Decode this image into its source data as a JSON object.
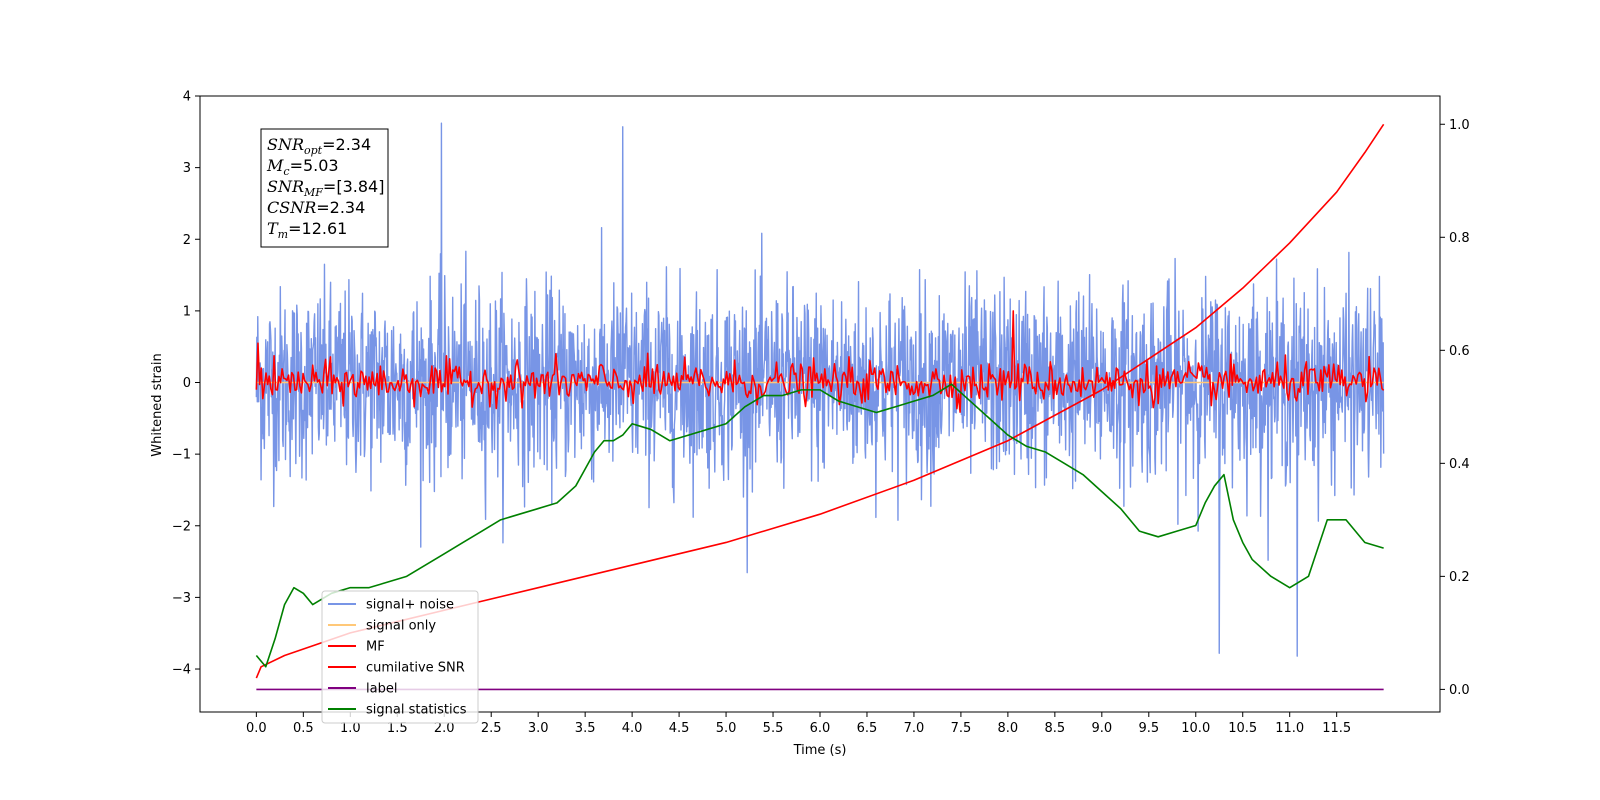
{
  "chart_data": {
    "type": "line",
    "xlabel": "Time (s)",
    "ylabel": "Whitened strain",
    "xlim": [
      -0.6,
      12.6
    ],
    "ylim": [
      -4.6,
      4.0
    ],
    "y2lim": [
      -0.04,
      1.05
    ],
    "grid": false,
    "legend_position": "lower-left",
    "x_ticks": [
      "0.0",
      "0.5",
      "1.0",
      "1.5",
      "2.0",
      "2.5",
      "3.0",
      "3.5",
      "4.0",
      "4.5",
      "5.0",
      "5.5",
      "6.0",
      "6.5",
      "7.0",
      "7.5",
      "8.0",
      "8.5",
      "9.0",
      "9.5",
      "10.0",
      "10.5",
      "11.0",
      "11.5"
    ],
    "y_ticks": [
      "4",
      "3",
      "2",
      "1",
      "0",
      "−1",
      "−2",
      "−3",
      "−4"
    ],
    "y2_ticks": [
      "1.0",
      "0.8",
      "0.6",
      "0.4",
      "0.2",
      "0.0"
    ],
    "info_box": [
      {
        "sym": "SNR",
        "sub": "opt",
        "value": "=2.34"
      },
      {
        "sym": "M",
        "sub": "c",
        "value": "=5.03"
      },
      {
        "sym": "SNR",
        "sub": "MF",
        "value": "=[3.84]"
      },
      {
        "sym": "CSNR",
        "sub": "",
        "value": "=2.34"
      },
      {
        "sym": "T",
        "sub": "m",
        "value": "=12.61"
      }
    ],
    "series": [
      {
        "name": "signal+ noise",
        "color": "#7895e6",
        "axis": "left",
        "kind": "noise",
        "x_range": [
          0,
          12.0
        ],
        "center": 0.0,
        "amplitude_approx": 1.2,
        "max": 3.62,
        "min": -3.82
      },
      {
        "name": "signal only",
        "color": "#ffc878",
        "axis": "left",
        "kind": "flat",
        "x_range": [
          0,
          12.0
        ],
        "value": 0.0
      },
      {
        "name": "MF",
        "color": "#ff0000",
        "axis": "left",
        "kind": "noise",
        "x_range": [
          0,
          12.0
        ],
        "center": 0.0,
        "amplitude_approx": 0.25,
        "max": 1.0,
        "min": -0.5
      },
      {
        "name": "cumilative SNR",
        "color": "#ff0000",
        "axis": "right",
        "x": [
          0,
          0.05,
          0.3,
          1.0,
          2.0,
          3.0,
          4.0,
          5.0,
          6.0,
          7.0,
          8.0,
          9.0,
          10.0,
          10.5,
          11.0,
          11.5,
          11.8,
          12.0
        ],
        "y": [
          0.02,
          0.04,
          0.06,
          0.1,
          0.14,
          0.18,
          0.22,
          0.26,
          0.31,
          0.37,
          0.44,
          0.53,
          0.64,
          0.71,
          0.79,
          0.88,
          0.95,
          1.0
        ]
      },
      {
        "name": "label",
        "color": "#800080",
        "axis": "right",
        "x": [
          0,
          12.0
        ],
        "y": [
          0.0,
          0.0
        ]
      },
      {
        "name": "signal statistics",
        "color": "#008000",
        "axis": "right",
        "x": [
          0,
          0.1,
          0.2,
          0.3,
          0.4,
          0.5,
          0.6,
          0.7,
          0.8,
          1.0,
          1.2,
          1.4,
          1.6,
          1.8,
          2.0,
          2.2,
          2.4,
          2.6,
          2.8,
          3.0,
          3.2,
          3.4,
          3.5,
          3.6,
          3.7,
          3.8,
          3.9,
          4.0,
          4.2,
          4.4,
          4.6,
          4.8,
          5.0,
          5.2,
          5.4,
          5.6,
          5.8,
          6.0,
          6.2,
          6.4,
          6.6,
          6.8,
          7.0,
          7.2,
          7.4,
          7.6,
          7.8,
          8.0,
          8.2,
          8.4,
          8.6,
          8.8,
          9.0,
          9.2,
          9.4,
          9.6,
          9.8,
          10.0,
          10.1,
          10.2,
          10.3,
          10.4,
          10.5,
          10.6,
          10.8,
          11.0,
          11.2,
          11.4,
          11.6,
          11.8,
          12.0
        ],
        "y": [
          0.06,
          0.04,
          0.09,
          0.15,
          0.18,
          0.17,
          0.15,
          0.16,
          0.17,
          0.18,
          0.18,
          0.19,
          0.2,
          0.22,
          0.24,
          0.26,
          0.28,
          0.3,
          0.31,
          0.32,
          0.33,
          0.36,
          0.39,
          0.42,
          0.44,
          0.44,
          0.45,
          0.47,
          0.46,
          0.44,
          0.45,
          0.46,
          0.47,
          0.5,
          0.52,
          0.52,
          0.53,
          0.53,
          0.51,
          0.5,
          0.49,
          0.5,
          0.51,
          0.52,
          0.54,
          0.51,
          0.48,
          0.45,
          0.43,
          0.42,
          0.4,
          0.38,
          0.35,
          0.32,
          0.28,
          0.27,
          0.28,
          0.29,
          0.33,
          0.36,
          0.38,
          0.3,
          0.26,
          0.23,
          0.2,
          0.18,
          0.2,
          0.3,
          0.3,
          0.26,
          0.25
        ]
      }
    ]
  }
}
